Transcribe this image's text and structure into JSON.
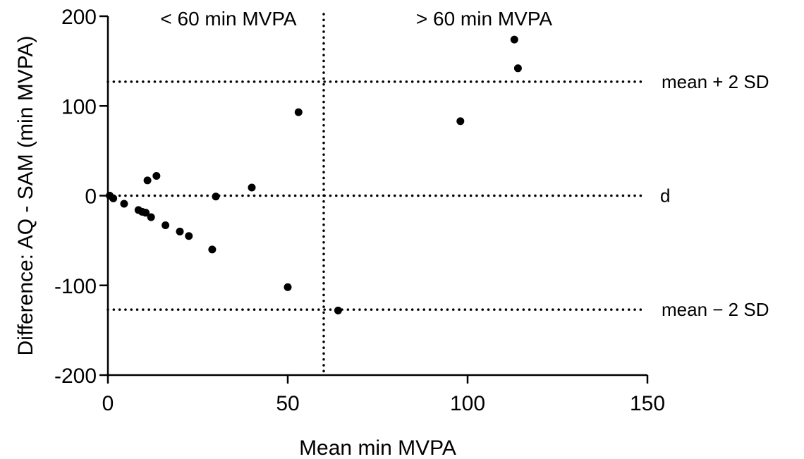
{
  "chart_data": {
    "type": "scatter",
    "xlabel": "Mean min MVPA",
    "ylabel": "Difference: AQ - SAM (min MVPA)",
    "xlim": [
      0,
      150
    ],
    "ylim": [
      -200,
      200
    ],
    "x_ticks": [
      0,
      50,
      100,
      150
    ],
    "y_ticks": [
      -200,
      -100,
      0,
      100,
      200
    ],
    "x_tick_labels": [
      "0",
      "50",
      "100",
      "150"
    ],
    "y_tick_labels": [
      "-200",
      "-100",
      "0",
      "100",
      "200"
    ],
    "grid": false,
    "points": [
      {
        "x": 0.5,
        "y": 0
      },
      {
        "x": 1.5,
        "y": -3
      },
      {
        "x": 4.5,
        "y": -9
      },
      {
        "x": 8.5,
        "y": -16
      },
      {
        "x": 9.5,
        "y": -18
      },
      {
        "x": 10.5,
        "y": -19
      },
      {
        "x": 11.0,
        "y": 17
      },
      {
        "x": 12.0,
        "y": -24
      },
      {
        "x": 13.5,
        "y": 22
      },
      {
        "x": 16.0,
        "y": -33
      },
      {
        "x": 20.0,
        "y": -40
      },
      {
        "x": 22.5,
        "y": -45
      },
      {
        "x": 29.0,
        "y": -60
      },
      {
        "x": 30.0,
        "y": -1
      },
      {
        "x": 40.0,
        "y": 9
      },
      {
        "x": 50.0,
        "y": -102
      },
      {
        "x": 53.0,
        "y": 93
      },
      {
        "x": 64.0,
        "y": -128
      },
      {
        "x": 98.0,
        "y": 83
      },
      {
        "x": 113.0,
        "y": 174
      },
      {
        "x": 114.0,
        "y": 142
      }
    ],
    "reference_lines": [
      {
        "orientation": "horizontal",
        "value": 127,
        "label": "mean + 2 SD",
        "style": "dotted"
      },
      {
        "orientation": "horizontal",
        "value": 0,
        "label": "d",
        "style": "dotted"
      },
      {
        "orientation": "horizontal",
        "value": -127,
        "label": "mean − 2 SD",
        "style": "dotted"
      },
      {
        "orientation": "vertical",
        "value": 60,
        "label": "",
        "style": "dotted"
      }
    ],
    "annotations": [
      {
        "text": "< 60 min MVPA",
        "region": "left-top"
      },
      {
        "text": "> 60 min MVPA",
        "region": "right-top"
      }
    ]
  }
}
